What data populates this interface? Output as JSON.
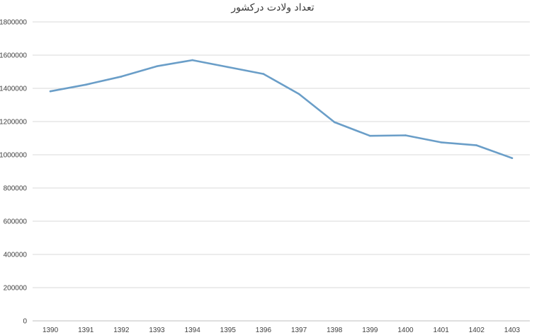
{
  "chart_data": {
    "type": "line",
    "title": "تعداد ولادت درکشور",
    "xlabel": "",
    "ylabel": "",
    "categories": [
      "1390",
      "1391",
      "1392",
      "1393",
      "1394",
      "1395",
      "1396",
      "1397",
      "1398",
      "1399",
      "1400",
      "1401",
      "1402",
      "1403"
    ],
    "series": [
      {
        "values": [
          1382000,
          1422000,
          1471000,
          1533000,
          1570000,
          1528000,
          1487000,
          1366000,
          1196000,
          1114000,
          1117000,
          1075000,
          1057000,
          980000
        ],
        "color": "#6a9ec8"
      }
    ],
    "ylim": [
      0,
      1800000
    ],
    "yticks": [
      "0",
      "200000",
      "400000",
      "600000",
      "800000",
      "1000000",
      "1200000",
      "1400000",
      "1600000",
      "1800000"
    ],
    "grid": true,
    "legend": "none"
  }
}
